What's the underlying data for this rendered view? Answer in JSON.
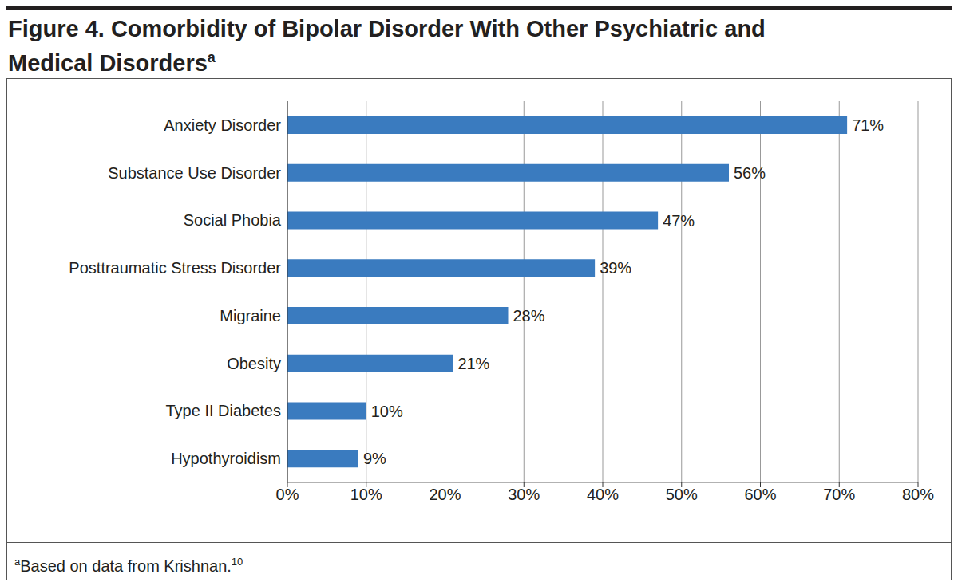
{
  "chart_data": {
    "type": "bar",
    "title": "Figure 4. Comorbidity of Bipolar Disorder With Other Psychiatric and Medical Disorders",
    "title_superscript": "a",
    "orientation": "horizontal",
    "categories": [
      "Anxiety Disorder",
      "Substance Use Disorder",
      "Social Phobia",
      "Posttraumatic Stress Disorder",
      "Migraine",
      "Obesity",
      "Type II Diabetes",
      "Hypothyroidism"
    ],
    "values": [
      71,
      56,
      47,
      39,
      28,
      21,
      10,
      9
    ],
    "value_labels": [
      "71%",
      "56%",
      "47%",
      "39%",
      "28%",
      "21%",
      "10%",
      "9%"
    ],
    "data_labels": true,
    "color": "#3a7bbf",
    "xlim": [
      0,
      80
    ],
    "xticks": [
      {
        "value": 0,
        "label": "0%"
      },
      {
        "value": 10,
        "label": "10%"
      },
      {
        "value": 20,
        "label": "20%"
      },
      {
        "value": 30,
        "label": "30%"
      },
      {
        "value": 40,
        "label": "40%"
      },
      {
        "value": 50,
        "label": "50%"
      },
      {
        "value": 60,
        "label": "60%"
      },
      {
        "value": 70,
        "label": "70%"
      },
      {
        "value": 80,
        "label": "80%"
      }
    ],
    "grid": true,
    "footnote": {
      "symbol": "a",
      "text": "Based on data from Krishnan.",
      "reference": "10"
    }
  }
}
